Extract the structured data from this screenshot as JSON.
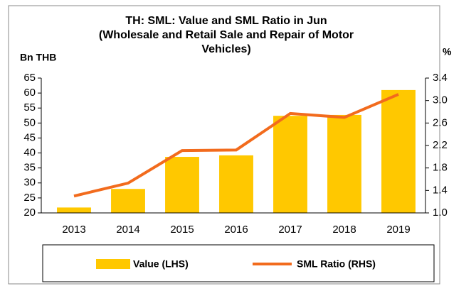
{
  "chart_data": {
    "type": "bar",
    "title": [
      "TH: SML: Value and SML Ratio in Jun",
      "(Wholesale and Retail Sale and Repair of Motor",
      "Vehicles)"
    ],
    "y_label": "Bn THB",
    "y2_label": "%",
    "categories": [
      "2013",
      "2014",
      "2015",
      "2016",
      "2017",
      "2018",
      "2019"
    ],
    "series": [
      {
        "name": "Value (LHS)",
        "type": "bar",
        "color": "#ffc800",
        "values": [
          21.8,
          28.0,
          38.7,
          39.2,
          52.4,
          52.7,
          61.0
        ]
      },
      {
        "name": "SML Ratio (RHS)",
        "type": "line",
        "axis": "y2",
        "color": "#f26b1d",
        "values": [
          1.3,
          1.53,
          2.11,
          2.12,
          2.77,
          2.7,
          3.11
        ]
      }
    ],
    "ylim": [
      20,
      65
    ],
    "yticks": [
      20,
      25,
      30,
      35,
      40,
      45,
      50,
      55,
      60,
      65
    ],
    "y2lim": [
      1.0,
      3.4
    ],
    "y2ticks": [
      {
        "value": 1.0,
        "label": "1.0"
      },
      1.4,
      1.8,
      2.2,
      2.6,
      {
        "value": 3.0,
        "label": "3.0"
      },
      3.4
    ],
    "legend": "bottom"
  }
}
